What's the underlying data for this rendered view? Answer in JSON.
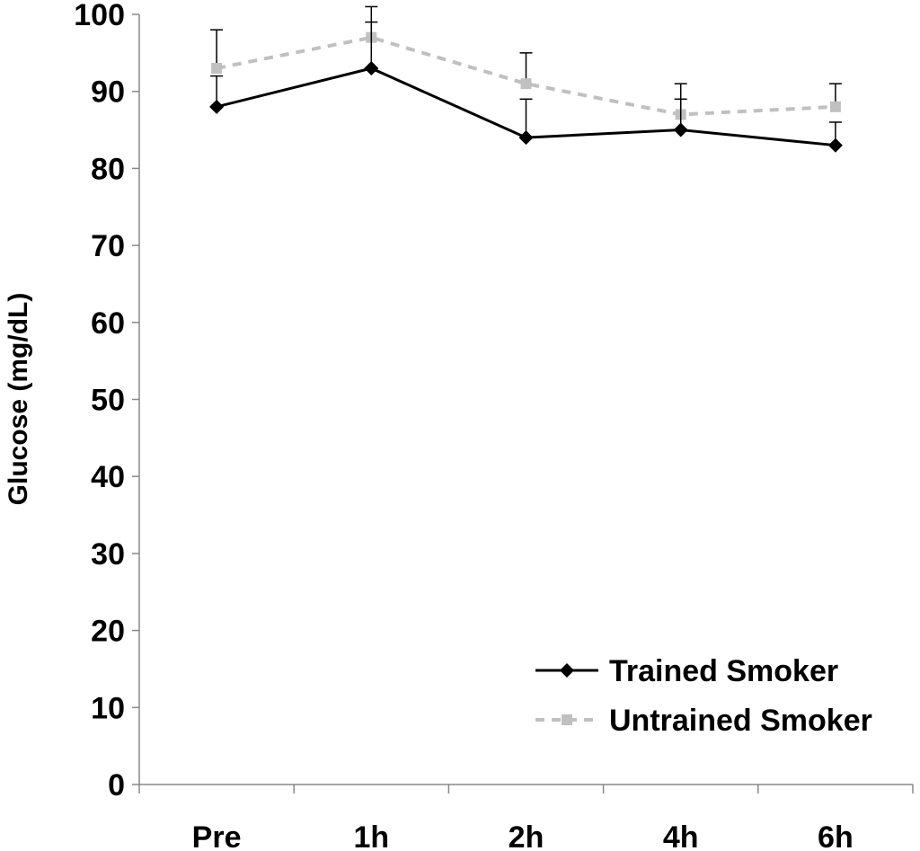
{
  "chart_data": {
    "type": "line",
    "title": "",
    "xlabel": "",
    "ylabel": "Glucose (mg/dL)",
    "categories": [
      "Pre",
      "1h",
      "2h",
      "4h",
      "6h"
    ],
    "ylim": [
      0,
      100
    ],
    "yticks": [
      0,
      10,
      20,
      30,
      40,
      50,
      60,
      70,
      80,
      90,
      100
    ],
    "grid": false,
    "legend_position": "bottom-right",
    "series": [
      {
        "name": "Trained Smoker",
        "values": [
          88,
          93,
          84,
          85,
          83
        ],
        "error_upper": [
          92,
          99,
          89,
          89,
          86
        ],
        "color": "#000000",
        "line_style": "solid",
        "marker": "diamond"
      },
      {
        "name": "Untrained Smoker",
        "values": [
          93,
          97,
          91,
          87,
          88
        ],
        "error_upper": [
          98,
          101,
          95,
          91,
          91
        ],
        "color": "#c0c0c0",
        "line_style": "dashed",
        "marker": "square"
      }
    ]
  }
}
